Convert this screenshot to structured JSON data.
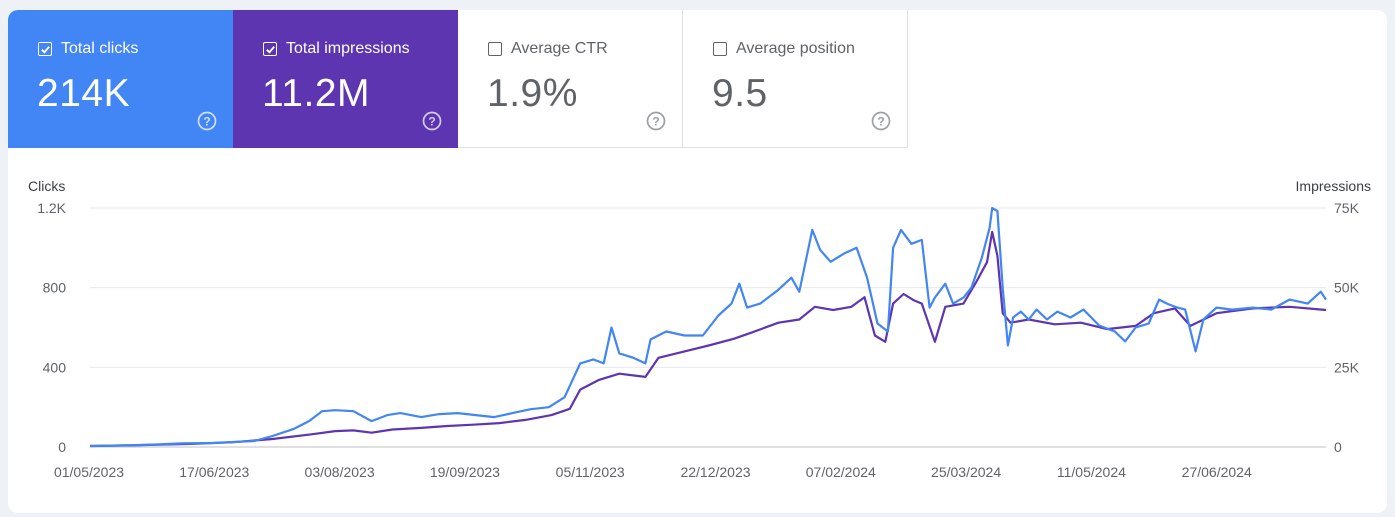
{
  "metrics": [
    {
      "label": "Total clicks",
      "value": "214K",
      "checked": true,
      "color": "#4285f4"
    },
    {
      "label": "Total impressions",
      "value": "11.2M",
      "checked": true,
      "color": "#5e35b1"
    },
    {
      "label": "Average CTR",
      "value": "1.9%",
      "checked": false
    },
    {
      "label": "Average position",
      "value": "9.5",
      "checked": false
    }
  ],
  "icons": {
    "checkbox": "checkbox-icon",
    "help": "help-circle-icon"
  },
  "chart_data": {
    "type": "line",
    "left_axis_title": "Clicks",
    "right_axis_title": "Impressions",
    "left_ticks": [
      "0",
      "400",
      "800",
      "1.2K"
    ],
    "right_ticks": [
      "0",
      "25K",
      "50K",
      "75K"
    ],
    "left_ylim": [
      0,
      1200
    ],
    "right_ylim": [
      0,
      75000
    ],
    "x_ticks": [
      "01/05/2023",
      "17/06/2023",
      "03/08/2023",
      "19/09/2023",
      "05/11/2023",
      "22/12/2023",
      "07/02/2024",
      "25/03/2024",
      "11/05/2024",
      "27/06/2024"
    ],
    "grid": true,
    "series": [
      {
        "name": "Clicks",
        "axis": "left",
        "color": "#4285f4",
        "points": [
          [
            "2023-05-01",
            5
          ],
          [
            "2023-05-15",
            8
          ],
          [
            "2023-05-25",
            12
          ],
          [
            "2023-06-05",
            18
          ],
          [
            "2023-06-17",
            20
          ],
          [
            "2023-06-25",
            25
          ],
          [
            "2023-07-03",
            30
          ],
          [
            "2023-07-10",
            55
          ],
          [
            "2023-07-18",
            90
          ],
          [
            "2023-07-24",
            130
          ],
          [
            "2023-07-29",
            180
          ],
          [
            "2023-08-03",
            185
          ],
          [
            "2023-08-10",
            180
          ],
          [
            "2023-08-17",
            130
          ],
          [
            "2023-08-23",
            160
          ],
          [
            "2023-08-28",
            170
          ],
          [
            "2023-09-05",
            150
          ],
          [
            "2023-09-12",
            165
          ],
          [
            "2023-09-19",
            170
          ],
          [
            "2023-09-26",
            160
          ],
          [
            "2023-10-03",
            150
          ],
          [
            "2023-10-10",
            170
          ],
          [
            "2023-10-17",
            190
          ],
          [
            "2023-10-24",
            200
          ],
          [
            "2023-10-30",
            250
          ],
          [
            "2023-11-05",
            420
          ],
          [
            "2023-11-10",
            440
          ],
          [
            "2023-11-14",
            420
          ],
          [
            "2023-11-17",
            600
          ],
          [
            "2023-11-20",
            470
          ],
          [
            "2023-11-25",
            450
          ],
          [
            "2023-11-30",
            420
          ],
          [
            "2023-12-02",
            540
          ],
          [
            "2023-12-08",
            580
          ],
          [
            "2023-12-15",
            560
          ],
          [
            "2023-12-22",
            560
          ],
          [
            "2023-12-28",
            660
          ],
          [
            "2024-01-02",
            720
          ],
          [
            "2024-01-05",
            820
          ],
          [
            "2024-01-08",
            700
          ],
          [
            "2024-01-13",
            720
          ],
          [
            "2024-01-20",
            790
          ],
          [
            "2024-01-25",
            850
          ],
          [
            "2024-01-28",
            780
          ],
          [
            "2024-02-02",
            1090
          ],
          [
            "2024-02-05",
            990
          ],
          [
            "2024-02-09",
            930
          ],
          [
            "2024-02-14",
            970
          ],
          [
            "2024-02-19",
            1000
          ],
          [
            "2024-02-23",
            850
          ],
          [
            "2024-02-27",
            620
          ],
          [
            "2024-03-02",
            580
          ],
          [
            "2024-03-04",
            1000
          ],
          [
            "2024-03-07",
            1090
          ],
          [
            "2024-03-11",
            1020
          ],
          [
            "2024-03-15",
            1040
          ],
          [
            "2024-03-18",
            700
          ],
          [
            "2024-03-20",
            750
          ],
          [
            "2024-03-24",
            820
          ],
          [
            "2024-03-27",
            720
          ],
          [
            "2024-03-31",
            750
          ],
          [
            "2024-04-03",
            800
          ],
          [
            "2024-04-07",
            950
          ],
          [
            "2024-04-10",
            1100
          ],
          [
            "2024-04-11",
            1200
          ],
          [
            "2024-04-13",
            1185
          ],
          [
            "2024-04-15",
            800
          ],
          [
            "2024-04-17",
            510
          ],
          [
            "2024-04-19",
            650
          ],
          [
            "2024-04-22",
            680
          ],
          [
            "2024-04-25",
            640
          ],
          [
            "2024-04-28",
            690
          ],
          [
            "2024-05-02",
            640
          ],
          [
            "2024-05-06",
            680
          ],
          [
            "2024-05-11",
            650
          ],
          [
            "2024-05-16",
            690
          ],
          [
            "2024-05-22",
            610
          ],
          [
            "2024-05-28",
            580
          ],
          [
            "2024-06-01",
            530
          ],
          [
            "2024-06-05",
            600
          ],
          [
            "2024-06-10",
            620
          ],
          [
            "2024-06-14",
            740
          ],
          [
            "2024-06-17",
            720
          ],
          [
            "2024-06-21",
            700
          ],
          [
            "2024-06-24",
            690
          ],
          [
            "2024-06-28",
            480
          ],
          [
            "2024-07-01",
            640
          ],
          [
            "2024-07-06",
            700
          ],
          [
            "2024-07-12",
            690
          ],
          [
            "2024-07-20",
            700
          ],
          [
            "2024-07-27",
            690
          ],
          [
            "2024-08-03",
            740
          ],
          [
            "2024-08-10",
            720
          ],
          [
            "2024-08-15",
            780
          ],
          [
            "2024-08-17",
            740
          ]
        ]
      },
      {
        "name": "Impressions",
        "axis": "right",
        "color": "#5e35b1",
        "points": [
          [
            "2023-05-01",
            300
          ],
          [
            "2023-05-20",
            600
          ],
          [
            "2023-06-10",
            1000
          ],
          [
            "2023-06-25",
            1500
          ],
          [
            "2023-07-10",
            2500
          ],
          [
            "2023-07-25",
            4000
          ],
          [
            "2023-08-03",
            5000
          ],
          [
            "2023-08-10",
            5200
          ],
          [
            "2023-08-17",
            4500
          ],
          [
            "2023-08-25",
            5500
          ],
          [
            "2023-09-05",
            6000
          ],
          [
            "2023-09-15",
            6600
          ],
          [
            "2023-09-25",
            7000
          ],
          [
            "2023-10-05",
            7500
          ],
          [
            "2023-10-15",
            8500
          ],
          [
            "2023-10-25",
            10000
          ],
          [
            "2023-11-01",
            12000
          ],
          [
            "2023-11-05",
            18000
          ],
          [
            "2023-11-12",
            21000
          ],
          [
            "2023-11-20",
            23000
          ],
          [
            "2023-11-30",
            22000
          ],
          [
            "2023-12-05",
            28000
          ],
          [
            "2023-12-15",
            30000
          ],
          [
            "2023-12-25",
            32000
          ],
          [
            "2024-01-03",
            34000
          ],
          [
            "2024-01-10",
            36000
          ],
          [
            "2024-01-20",
            39000
          ],
          [
            "2024-01-28",
            40000
          ],
          [
            "2024-02-03",
            44000
          ],
          [
            "2024-02-10",
            43000
          ],
          [
            "2024-02-17",
            44000
          ],
          [
            "2024-02-22",
            47000
          ],
          [
            "2024-02-26",
            35000
          ],
          [
            "2024-03-01",
            33000
          ],
          [
            "2024-03-04",
            45000
          ],
          [
            "2024-03-08",
            48000
          ],
          [
            "2024-03-12",
            46000
          ],
          [
            "2024-03-15",
            45000
          ],
          [
            "2024-03-20",
            33000
          ],
          [
            "2024-03-24",
            44000
          ],
          [
            "2024-03-31",
            45000
          ],
          [
            "2024-04-05",
            52000
          ],
          [
            "2024-04-09",
            58000
          ],
          [
            "2024-04-11",
            67500
          ],
          [
            "2024-04-13",
            60000
          ],
          [
            "2024-04-15",
            42000
          ],
          [
            "2024-04-18",
            39000
          ],
          [
            "2024-04-25",
            40000
          ],
          [
            "2024-05-05",
            38500
          ],
          [
            "2024-05-15",
            39000
          ],
          [
            "2024-05-25",
            37000
          ],
          [
            "2024-06-05",
            38000
          ],
          [
            "2024-06-12",
            42000
          ],
          [
            "2024-06-20",
            43500
          ],
          [
            "2024-06-26",
            38000
          ],
          [
            "2024-07-06",
            42000
          ],
          [
            "2024-07-20",
            43500
          ],
          [
            "2024-08-03",
            44000
          ],
          [
            "2024-08-17",
            43000
          ]
        ]
      }
    ]
  }
}
